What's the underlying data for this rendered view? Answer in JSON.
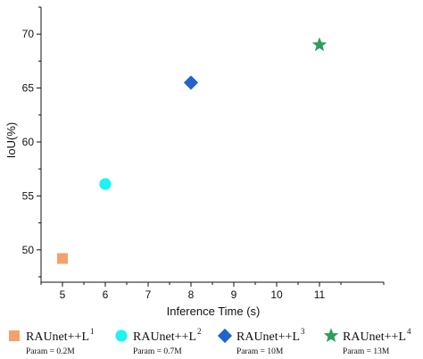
{
  "chart_data": {
    "type": "scatter",
    "xlabel": "Inference Time (s)",
    "ylabel": "IoU(%)",
    "xlim": [
      4.5,
      12.5
    ],
    "ylim": [
      47,
      72.5
    ],
    "x_ticks": [
      5,
      6,
      7,
      8,
      9,
      10,
      11
    ],
    "y_ticks": [
      50,
      55,
      60,
      65,
      70
    ],
    "grid": false,
    "legend_position": "bottom",
    "series": [
      {
        "name": "RAUnet++L",
        "sup": "1",
        "param": "Param = 0.2M",
        "x": 5,
        "y": 49.2,
        "marker": "square",
        "color": "#f2a36b"
      },
      {
        "name": "RAUnet++L",
        "sup": "2",
        "param": "Param = 0.7M",
        "x": 6,
        "y": 56.1,
        "marker": "circle",
        "color": "#1ef2f2"
      },
      {
        "name": "RAUnet++L",
        "sup": "3",
        "param": "Param = 10M",
        "x": 8,
        "y": 65.5,
        "marker": "diamond",
        "color": "#1f65cc"
      },
      {
        "name": "RAUnet++L",
        "sup": "4",
        "param": "Param = 13M",
        "x": 11,
        "y": 69.0,
        "marker": "star",
        "color": "#2e9e5b"
      }
    ]
  }
}
